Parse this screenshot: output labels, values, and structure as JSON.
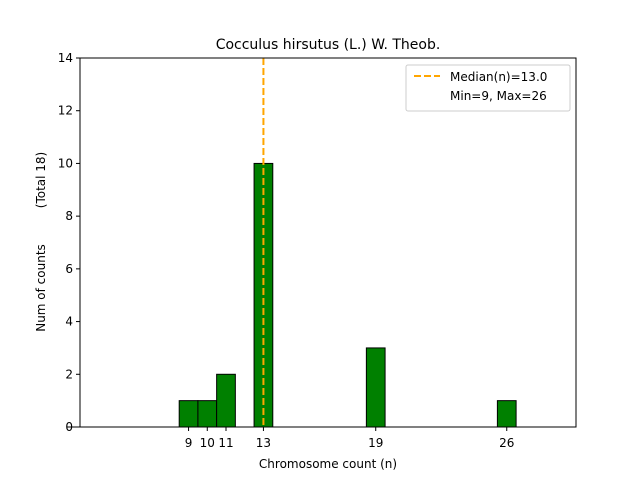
{
  "chart_data": {
    "type": "bar",
    "title": "Cocculus hirsutus (L.) W. Theob.",
    "xlabel": "Chromosome count (n)",
    "ylabel": "Num of counts",
    "ylabel_secondary": "(Total 18)",
    "xlim": [
      3.2,
      29.7
    ],
    "ylim": [
      0,
      14
    ],
    "yticks": [
      0,
      2,
      4,
      6,
      8,
      10,
      12,
      14
    ],
    "xticks": [
      9,
      10,
      11,
      13,
      19,
      26
    ],
    "bar_width": 1,
    "bars": [
      {
        "x": 9,
        "value": 1
      },
      {
        "x": 10,
        "value": 1
      },
      {
        "x": 11,
        "value": 2
      },
      {
        "x": 13,
        "value": 10
      },
      {
        "x": 19,
        "value": 3
      },
      {
        "x": 26,
        "value": 1
      }
    ],
    "baseline_end": 29,
    "median": 13.0,
    "legend": {
      "placement": "top-right",
      "median_label": "Median(n)=13.0",
      "range_label": "Min=9, Max=26"
    },
    "colors": {
      "bar_fill": "#008000",
      "bar_edge": "#000000",
      "median_line": "#FFA500"
    },
    "grid": false
  }
}
